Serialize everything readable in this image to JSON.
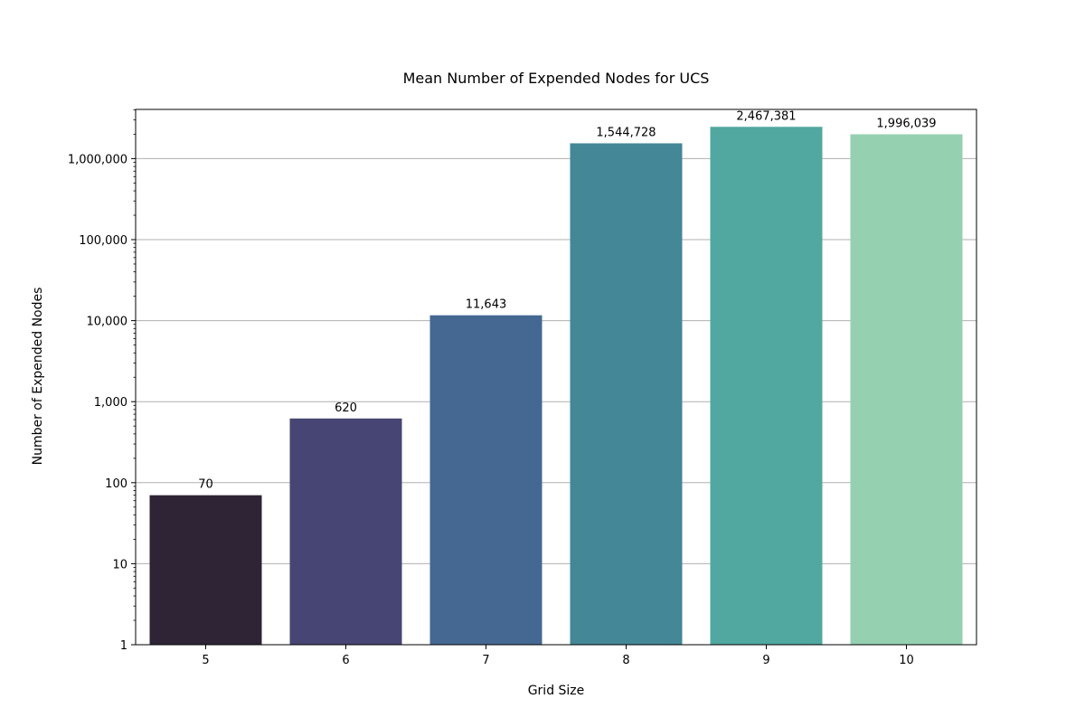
{
  "chart_data": {
    "type": "bar",
    "title": "Mean Number of Expended Nodes for UCS",
    "xlabel": "Grid Size",
    "ylabel": "Number of Expended Nodes",
    "yscale": "log",
    "ylim": [
      1,
      4000000
    ],
    "grid": "y-major",
    "legend": "none",
    "categories": [
      "5",
      "6",
      "7",
      "8",
      "9",
      "10"
    ],
    "values": [
      70,
      620,
      11643,
      1544728,
      2467381,
      1996039
    ],
    "data_labels": [
      "70",
      "620",
      "11,643",
      "1,544,728",
      "2,467,381",
      "1,996,039"
    ],
    "colors": [
      "#2e2436",
      "#474573",
      "#446892",
      "#448797",
      "#50a8a0",
      "#95d0b1"
    ],
    "yticks": [
      {
        "value": 1,
        "label": "1"
      },
      {
        "value": 10,
        "label": "10"
      },
      {
        "value": 100,
        "label": "100"
      },
      {
        "value": 1000,
        "label": "1,000"
      },
      {
        "value": 10000,
        "label": "10,000"
      },
      {
        "value": 100000,
        "label": "100,000"
      },
      {
        "value": 1000000,
        "label": "1,000,000"
      }
    ]
  }
}
